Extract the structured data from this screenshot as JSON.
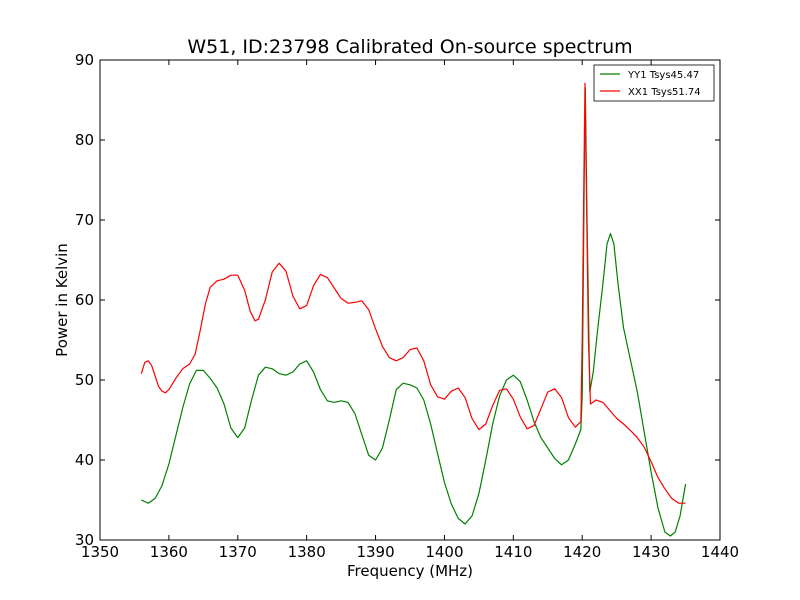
{
  "chart_data": {
    "type": "line",
    "title": "W51, ID:23798 Calibrated On-source spectrum",
    "xlabel": "Frequency (MHz)",
    "ylabel": "Power in Kelvin",
    "xlim": [
      1350,
      1440
    ],
    "ylim": [
      30,
      90
    ],
    "xticks": [
      1350,
      1360,
      1370,
      1380,
      1390,
      1400,
      1410,
      1420,
      1430,
      1440
    ],
    "yticks": [
      30,
      40,
      50,
      60,
      70,
      80,
      90
    ],
    "grid": false,
    "legend_position": "top-right",
    "series": [
      {
        "name": "YY1 Tsys45.47",
        "color": "#008000",
        "points": [
          [
            1356.0,
            35.0
          ],
          [
            1357.0,
            34.6
          ],
          [
            1358.0,
            35.2
          ],
          [
            1359.0,
            36.8
          ],
          [
            1360.0,
            39.5
          ],
          [
            1361.0,
            43.0
          ],
          [
            1362.0,
            46.5
          ],
          [
            1363.0,
            49.5
          ],
          [
            1364.0,
            51.2
          ],
          [
            1365.0,
            51.2
          ],
          [
            1366.0,
            50.2
          ],
          [
            1367.0,
            49.0
          ],
          [
            1368.0,
            47.0
          ],
          [
            1369.0,
            44.0
          ],
          [
            1370.0,
            42.8
          ],
          [
            1371.0,
            44.0
          ],
          [
            1372.0,
            47.5
          ],
          [
            1373.0,
            50.6
          ],
          [
            1374.0,
            51.6
          ],
          [
            1375.0,
            51.4
          ],
          [
            1376.0,
            50.8
          ],
          [
            1377.0,
            50.6
          ],
          [
            1378.0,
            51.0
          ],
          [
            1379.0,
            52.0
          ],
          [
            1380.0,
            52.4
          ],
          [
            1381.0,
            51.0
          ],
          [
            1382.0,
            48.8
          ],
          [
            1383.0,
            47.4
          ],
          [
            1384.0,
            47.2
          ],
          [
            1385.0,
            47.4
          ],
          [
            1386.0,
            47.2
          ],
          [
            1387.0,
            45.8
          ],
          [
            1388.0,
            43.2
          ],
          [
            1389.0,
            40.6
          ],
          [
            1390.0,
            40.0
          ],
          [
            1391.0,
            41.5
          ],
          [
            1392.0,
            45.0
          ],
          [
            1393.0,
            48.8
          ],
          [
            1394.0,
            49.6
          ],
          [
            1395.0,
            49.4
          ],
          [
            1396.0,
            49.0
          ],
          [
            1397.0,
            47.5
          ],
          [
            1398.0,
            44.5
          ],
          [
            1399.0,
            40.8
          ],
          [
            1400.0,
            37.2
          ],
          [
            1401.0,
            34.5
          ],
          [
            1402.0,
            32.7
          ],
          [
            1403.0,
            32.0
          ],
          [
            1404.0,
            33.0
          ],
          [
            1405.0,
            35.8
          ],
          [
            1406.0,
            40.0
          ],
          [
            1407.0,
            44.5
          ],
          [
            1408.0,
            48.0
          ],
          [
            1409.0,
            50.0
          ],
          [
            1410.0,
            50.6
          ],
          [
            1411.0,
            49.8
          ],
          [
            1412.0,
            47.5
          ],
          [
            1413.0,
            44.8
          ],
          [
            1414.0,
            42.8
          ],
          [
            1415.0,
            41.5
          ],
          [
            1416.0,
            40.2
          ],
          [
            1417.0,
            39.4
          ],
          [
            1418.0,
            40.0
          ],
          [
            1419.0,
            42.0
          ],
          [
            1419.8,
            43.8
          ],
          [
            1420.0,
            48.0
          ],
          [
            1420.3,
            76.0
          ],
          [
            1420.45,
            86.5
          ],
          [
            1420.7,
            70.0
          ],
          [
            1421.1,
            48.5
          ],
          [
            1421.6,
            51.0
          ],
          [
            1422.2,
            56.0
          ],
          [
            1423.0,
            62.0
          ],
          [
            1423.6,
            67.0
          ],
          [
            1424.1,
            68.3
          ],
          [
            1424.6,
            67.0
          ],
          [
            1425.2,
            62.0
          ],
          [
            1426.0,
            56.5
          ],
          [
            1427.0,
            52.5
          ],
          [
            1428.0,
            48.5
          ],
          [
            1429.0,
            43.5
          ],
          [
            1430.0,
            38.5
          ],
          [
            1431.0,
            34.0
          ],
          [
            1432.0,
            31.0
          ],
          [
            1432.8,
            30.5
          ],
          [
            1433.5,
            31.0
          ],
          [
            1434.2,
            33.0
          ],
          [
            1435.0,
            37.0
          ]
        ]
      },
      {
        "name": "XX1 Tsys51.74",
        "color": "#ff0000",
        "points": [
          [
            1356.0,
            50.8
          ],
          [
            1356.5,
            52.2
          ],
          [
            1357.0,
            52.4
          ],
          [
            1357.5,
            51.8
          ],
          [
            1358.0,
            50.5
          ],
          [
            1358.5,
            49.2
          ],
          [
            1359.0,
            48.6
          ],
          [
            1359.5,
            48.4
          ],
          [
            1360.0,
            48.8
          ],
          [
            1361.0,
            50.2
          ],
          [
            1362.0,
            51.4
          ],
          [
            1363.0,
            52.0
          ],
          [
            1363.8,
            53.2
          ],
          [
            1364.5,
            56.0
          ],
          [
            1365.3,
            59.5
          ],
          [
            1366.0,
            61.6
          ],
          [
            1367.0,
            62.4
          ],
          [
            1368.0,
            62.6
          ],
          [
            1369.0,
            63.1
          ],
          [
            1370.0,
            63.1
          ],
          [
            1371.0,
            61.2
          ],
          [
            1371.8,
            58.6
          ],
          [
            1372.5,
            57.4
          ],
          [
            1373.0,
            57.6
          ],
          [
            1374.0,
            60.0
          ],
          [
            1375.0,
            63.5
          ],
          [
            1376.0,
            64.6
          ],
          [
            1377.0,
            63.6
          ],
          [
            1378.0,
            60.5
          ],
          [
            1379.0,
            58.9
          ],
          [
            1380.0,
            59.3
          ],
          [
            1381.0,
            61.8
          ],
          [
            1382.0,
            63.2
          ],
          [
            1383.0,
            62.8
          ],
          [
            1384.0,
            61.5
          ],
          [
            1385.0,
            60.2
          ],
          [
            1386.0,
            59.6
          ],
          [
            1387.0,
            59.7
          ],
          [
            1388.0,
            59.9
          ],
          [
            1389.0,
            58.8
          ],
          [
            1390.0,
            56.4
          ],
          [
            1391.0,
            54.2
          ],
          [
            1392.0,
            52.8
          ],
          [
            1393.0,
            52.4
          ],
          [
            1394.0,
            52.8
          ],
          [
            1395.0,
            53.8
          ],
          [
            1396.0,
            54.0
          ],
          [
            1397.0,
            52.4
          ],
          [
            1398.0,
            49.4
          ],
          [
            1399.0,
            47.9
          ],
          [
            1400.0,
            47.6
          ],
          [
            1401.0,
            48.6
          ],
          [
            1402.0,
            49.0
          ],
          [
            1403.0,
            47.8
          ],
          [
            1404.0,
            45.2
          ],
          [
            1405.0,
            43.8
          ],
          [
            1406.0,
            44.5
          ],
          [
            1407.0,
            46.8
          ],
          [
            1408.0,
            48.7
          ],
          [
            1409.0,
            48.9
          ],
          [
            1410.0,
            47.6
          ],
          [
            1411.0,
            45.4
          ],
          [
            1412.0,
            43.9
          ],
          [
            1413.0,
            44.3
          ],
          [
            1414.0,
            46.4
          ],
          [
            1415.0,
            48.5
          ],
          [
            1416.0,
            48.9
          ],
          [
            1417.0,
            47.8
          ],
          [
            1418.0,
            45.3
          ],
          [
            1419.0,
            44.1
          ],
          [
            1419.8,
            44.8
          ],
          [
            1420.0,
            55.0
          ],
          [
            1420.2,
            72.0
          ],
          [
            1420.4,
            87.1
          ],
          [
            1420.6,
            74.0
          ],
          [
            1420.9,
            55.0
          ],
          [
            1421.2,
            47.0
          ],
          [
            1422.0,
            47.5
          ],
          [
            1423.0,
            47.2
          ],
          [
            1424.0,
            46.2
          ],
          [
            1425.0,
            45.2
          ],
          [
            1426.0,
            44.5
          ],
          [
            1427.0,
            43.7
          ],
          [
            1428.0,
            42.8
          ],
          [
            1429.0,
            41.6
          ],
          [
            1430.0,
            39.8
          ],
          [
            1431.0,
            37.8
          ],
          [
            1432.0,
            36.4
          ],
          [
            1433.0,
            35.2
          ],
          [
            1434.0,
            34.6
          ],
          [
            1435.0,
            34.6
          ]
        ]
      }
    ]
  }
}
